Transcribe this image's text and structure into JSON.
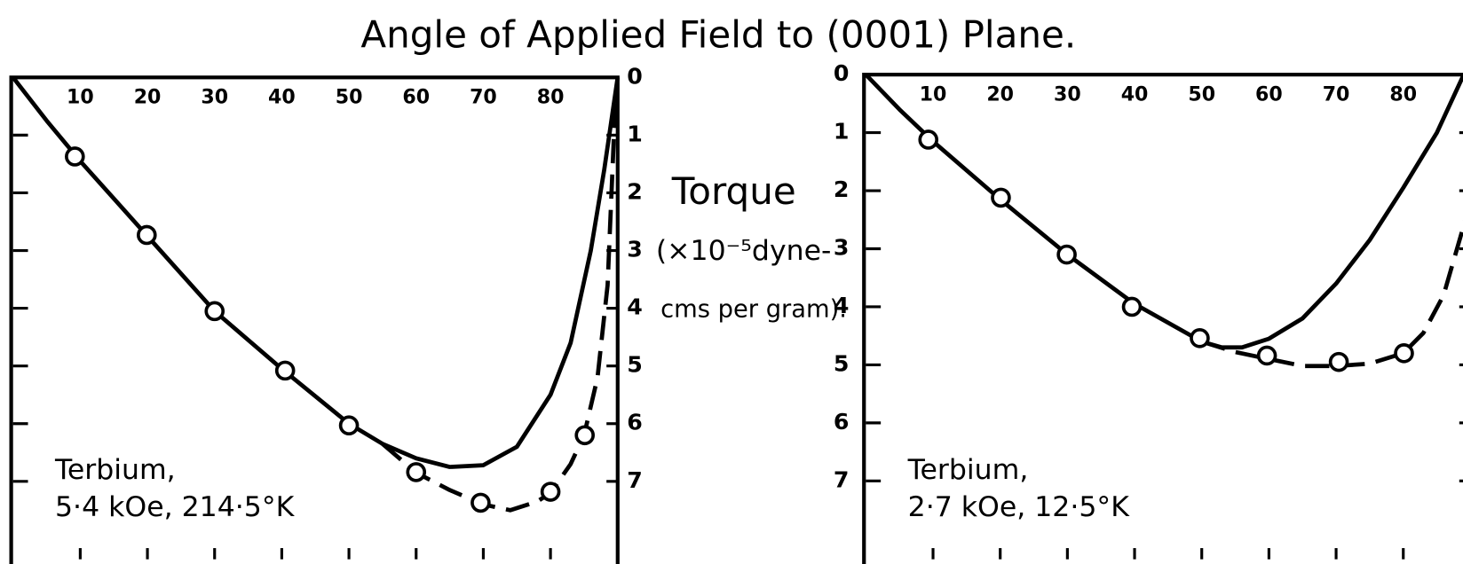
{
  "title": "Angle of Applied Field  to (0001) Plane.",
  "ylabel": [
    "Torque",
    "(×10⁻⁵dyne-",
    "cms per gram)."
  ],
  "chart_data": [
    {
      "type": "line",
      "xlim": [
        0,
        90
      ],
      "ylim": [
        0,
        8.35
      ],
      "y_inverted": true,
      "ytick_side": "right",
      "xticks": [
        10,
        20,
        30,
        40,
        50,
        60,
        70,
        80
      ],
      "yticks": [
        0,
        1,
        2,
        3,
        4,
        5,
        6,
        7
      ],
      "annotations": [
        "Terbium,",
        "5·4 kOe, 214·5°K"
      ],
      "series": [
        {
          "style": "solid",
          "color": "#000000",
          "x": [
            0,
            5,
            10,
            20,
            30,
            40,
            50,
            55,
            60,
            65,
            70,
            75,
            80,
            83,
            86,
            88,
            90
          ],
          "values": [
            0,
            0.75,
            1.45,
            2.75,
            4.05,
            5.05,
            6.0,
            6.35,
            6.6,
            6.75,
            6.72,
            6.4,
            5.5,
            4.6,
            3.0,
            1.6,
            0
          ]
        },
        {
          "style": "dashed",
          "color": "#000000",
          "x": [
            55,
            60,
            65,
            70,
            74,
            78,
            80,
            83,
            85,
            87,
            88.5,
            89.7
          ],
          "values": [
            6.35,
            6.85,
            7.15,
            7.4,
            7.5,
            7.35,
            7.2,
            6.7,
            6.2,
            5.2,
            3.6,
            0.3
          ]
        },
        {
          "style": "points",
          "color": "#000000",
          "x": [
            9.2,
            19.9,
            30,
            40.5,
            50,
            60,
            69.6,
            80,
            85.1
          ],
          "values": [
            1.37,
            2.73,
            4.05,
            5.08,
            6.03,
            6.84,
            7.37,
            7.18,
            6.2
          ]
        }
      ]
    },
    {
      "type": "line",
      "xlim": [
        0,
        90
      ],
      "ylim": [
        0,
        8.35
      ],
      "y_inverted": true,
      "ytick_side": "left",
      "xticks": [
        10,
        20,
        30,
        40,
        50,
        60,
        70,
        80
      ],
      "yticks": [
        0,
        1,
        2,
        3,
        4,
        5,
        6,
        7
      ],
      "annotations": [
        "Terbium,",
        "2·7 kOe, 12·5°K"
      ],
      "series": [
        {
          "style": "solid",
          "color": "#000000",
          "x": [
            0,
            5,
            10,
            20,
            30,
            40,
            50,
            53,
            56,
            60,
            65,
            70,
            75,
            80,
            85,
            89
          ],
          "values": [
            0,
            0.6,
            1.15,
            2.15,
            3.1,
            3.95,
            4.6,
            4.7,
            4.7,
            4.55,
            4.2,
            3.6,
            2.85,
            1.95,
            1.0,
            0
          ]
        },
        {
          "style": "dashed",
          "color": "#000000",
          "x": [
            50,
            55,
            60,
            65,
            70,
            75,
            80,
            83,
            86,
            88,
            89.5
          ],
          "values": [
            4.6,
            4.78,
            4.9,
            5.02,
            5.02,
            4.98,
            4.8,
            4.45,
            3.8,
            3.0,
            2.4
          ]
        },
        {
          "style": "points",
          "color": "#000000",
          "x": [
            9.3,
            20.1,
            29.9,
            39.6,
            49.7,
            59.7,
            70.4,
            80.1
          ],
          "values": [
            1.12,
            2.12,
            3.1,
            4.0,
            4.54,
            4.84,
            4.95,
            4.8
          ]
        }
      ]
    }
  ]
}
